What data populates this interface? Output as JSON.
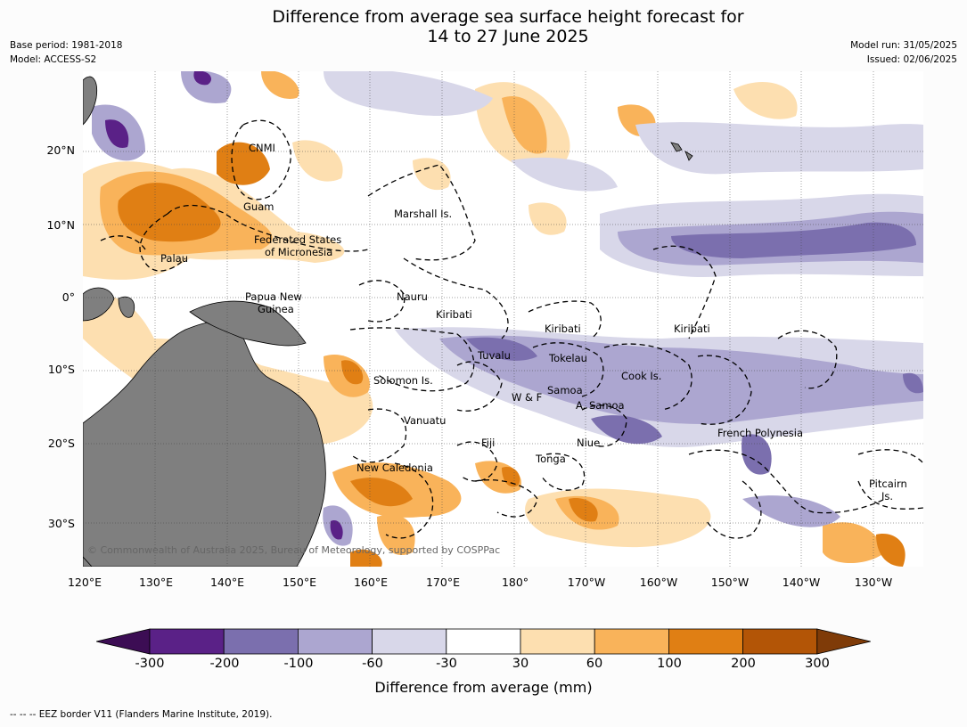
{
  "title": "Difference from average sea surface height forecast for\n14 to 27 June 2025",
  "meta_left": {
    "base_period": "Base period: 1981-2018",
    "model": "Model: ACCESS-S2"
  },
  "meta_right": {
    "model_run": "Model run: 31/05/2025",
    "issued": "Issued: 02/06/2025"
  },
  "lat_labels": [
    "20°N",
    "10°N",
    "0°",
    "10°S",
    "20°S",
    "30°S"
  ],
  "lon_labels": [
    "120°E",
    "130°E",
    "140°E",
    "150°E",
    "160°E",
    "170°E",
    "180°",
    "170°W",
    "160°W",
    "150°W",
    "140°W",
    "130°W"
  ],
  "places": {
    "cnmi": "CNMI",
    "guam": "Guam",
    "marshall": "Marshall Is.",
    "fsm_line1": "Federated States",
    "fsm_line2": "of Micronesia",
    "palau": "Palau",
    "png_line1": "Papua New",
    "png_line2": "Guinea",
    "nauru": "Nauru",
    "kiribati_w": "Kiribati",
    "kiribati_c": "Kiribati",
    "kiribati_e": "Kiribati",
    "tuvalu": "Tuvalu",
    "tokelau": "Tokelau",
    "cook": "Cook Is.",
    "solomon": "Solomon Is.",
    "samoa": "Samoa",
    "wf": "W & F",
    "asamoa": "A. Samoa",
    "vanuatu": "Vanuatu",
    "fiji": "Fiji",
    "niue": "Niue",
    "tonga": "Tonga",
    "new_caledonia": "New Caledonia",
    "french_polynesia": "French Polynesia",
    "pitcairn_line1": "Pitcairn",
    "pitcairn_line2": "Is."
  },
  "copyright": "© Commonwealth of Australia 2025, Bureau of Meteorology, supported by COSPPac",
  "colorbar": {
    "ticks": [
      "-300",
      "-200",
      "-100",
      "-60",
      "-30",
      "30",
      "60",
      "100",
      "200",
      "300"
    ],
    "colors": [
      "#3c0d54",
      "#5a2187",
      "#7b6fae",
      "#aca6d0",
      "#d8d7e9",
      "#ffffff",
      "#fddfb0",
      "#f9b35a",
      "#e07f14",
      "#b35506",
      "#7f3b08"
    ],
    "label": "Difference from average (mm)"
  },
  "footnote": "--  --  -- EEZ border V11 (Flanders Marine Institute, 2019)."
}
